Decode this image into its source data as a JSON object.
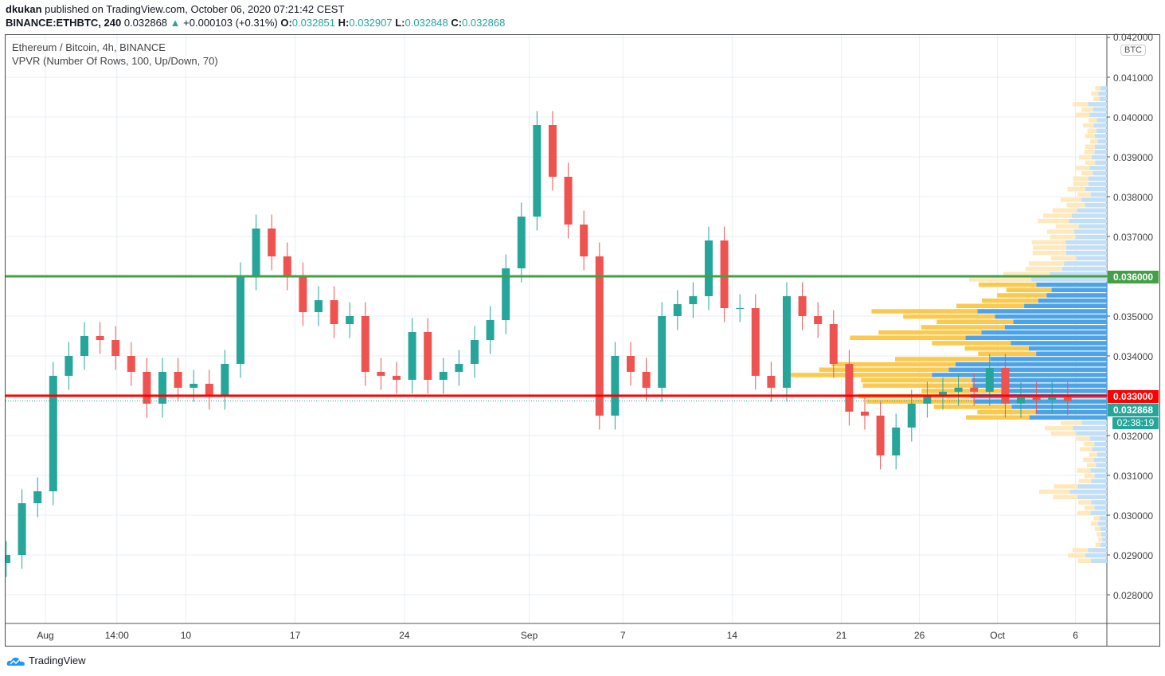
{
  "header": {
    "author": "dkukan",
    "published": "published on TradingView.com, October 06, 2020 07:21:42 CEST",
    "symbol": "BINANCE:ETHBTC, 240",
    "last": "0.032868",
    "change": "+0.000103 (+0.31%)",
    "o_label": "O:",
    "o": "0.032851",
    "h_label": "H:",
    "h": "0.032907",
    "l_label": "L:",
    "l": "0.032848",
    "c_label": "C:",
    "c": "0.032868"
  },
  "legend": {
    "title": "Ethereum / Bitcoin, 4h, BINANCE",
    "indicator": "VPVR (Number Of Rows, 100, Up/Down, 70)"
  },
  "currency": "BTC",
  "tags": {
    "green_line": "0.036000",
    "red_line": "0.033000",
    "last_price": "0.032868",
    "countdown": "02:38:19"
  },
  "colors": {
    "up": "#26a69a",
    "down": "#ef5350",
    "green_line": "#43a047",
    "red_line": "#ff0000",
    "vp_up": "#4da3e8",
    "vp_down": "#fbc94e",
    "vp_up_faded": "#c3dff5",
    "vp_down_faded": "#fde9bd"
  },
  "footer": {
    "brand": "TradingView"
  },
  "chart_data": {
    "type": "candlestick",
    "interval": "4h",
    "ylim": [
      0.0274,
      0.0421
    ],
    "y_ticks": [
      "0.028000",
      "0.029000",
      "0.030000",
      "0.031000",
      "0.032000",
      "0.033000",
      "0.034000",
      "0.035000",
      "0.036000",
      "0.037000",
      "0.038000",
      "0.039000",
      "0.040000",
      "0.041000",
      "0.042000"
    ],
    "x_ticks": [
      {
        "label": "Aug",
        "date": "2020-08-01"
      },
      {
        "label": "14:00",
        "date": "2020-08-05.58"
      },
      {
        "label": "10",
        "date": "2020-08-10"
      },
      {
        "label": "17",
        "date": "2020-08-17"
      },
      {
        "label": "24",
        "date": "2020-08-24"
      },
      {
        "label": "Sep",
        "date": "2020-09-01"
      },
      {
        "label": "7",
        "date": "2020-09-07"
      },
      {
        "label": "14",
        "date": "2020-09-14"
      },
      {
        "label": "21",
        "date": "2020-09-21"
      },
      {
        "label": "26",
        "date": "2020-09-26"
      },
      {
        "label": "Oct",
        "date": "2020-10-01"
      },
      {
        "label": "6",
        "date": "2020-10-06"
      }
    ],
    "horizontal_lines": [
      {
        "price": 0.036,
        "color": "green"
      },
      {
        "price": 0.033,
        "color": "red"
      }
    ],
    "daily_closes_approx": [
      [
        "2020-07-29",
        0.0288
      ],
      [
        "2020-07-30",
        0.029
      ],
      [
        "2020-07-31",
        0.0303
      ],
      [
        "2020-08-01",
        0.0306
      ],
      [
        "2020-08-02",
        0.0335
      ],
      [
        "2020-08-03",
        0.034
      ],
      [
        "2020-08-04",
        0.0345
      ],
      [
        "2020-08-05",
        0.0344
      ],
      [
        "2020-08-06",
        0.034
      ],
      [
        "2020-08-07",
        0.0336
      ],
      [
        "2020-08-08",
        0.0328
      ],
      [
        "2020-08-09",
        0.0336
      ],
      [
        "2020-08-10",
        0.0332
      ],
      [
        "2020-08-11",
        0.0333
      ],
      [
        "2020-08-12",
        0.033
      ],
      [
        "2020-08-13",
        0.0338
      ],
      [
        "2020-08-14",
        0.036
      ],
      [
        "2020-08-15",
        0.0372
      ],
      [
        "2020-08-16",
        0.0365
      ],
      [
        "2020-08-17",
        0.036
      ],
      [
        "2020-08-18",
        0.0351
      ],
      [
        "2020-08-19",
        0.0354
      ],
      [
        "2020-08-20",
        0.0348
      ],
      [
        "2020-08-21",
        0.035
      ],
      [
        "2020-08-22",
        0.0336
      ],
      [
        "2020-08-23",
        0.0335
      ],
      [
        "2020-08-24",
        0.0334
      ],
      [
        "2020-08-25",
        0.0346
      ],
      [
        "2020-08-26",
        0.0334
      ],
      [
        "2020-08-27",
        0.0336
      ],
      [
        "2020-08-28",
        0.0338
      ],
      [
        "2020-08-29",
        0.0344
      ],
      [
        "2020-08-30",
        0.0349
      ],
      [
        "2020-08-31",
        0.0362
      ],
      [
        "2020-09-01",
        0.0375
      ],
      [
        "2020-09-02",
        0.0398
      ],
      [
        "2020-09-03",
        0.0385
      ],
      [
        "2020-09-04",
        0.0373
      ],
      [
        "2020-09-05",
        0.0365
      ],
      [
        "2020-09-06",
        0.0325
      ],
      [
        "2020-09-07",
        0.034
      ],
      [
        "2020-09-08",
        0.0336
      ],
      [
        "2020-09-09",
        0.0332
      ],
      [
        "2020-09-10",
        0.035
      ],
      [
        "2020-09-11",
        0.0353
      ],
      [
        "2020-09-12",
        0.0355
      ],
      [
        "2020-09-13",
        0.0369
      ],
      [
        "2020-09-14",
        0.0352
      ],
      [
        "2020-09-15",
        0.0352
      ],
      [
        "2020-09-16",
        0.0335
      ],
      [
        "2020-09-17",
        0.0332
      ],
      [
        "2020-09-18",
        0.0355
      ],
      [
        "2020-09-19",
        0.035
      ],
      [
        "2020-09-20",
        0.0348
      ],
      [
        "2020-09-21",
        0.0338
      ],
      [
        "2020-09-22",
        0.0326
      ],
      [
        "2020-09-23",
        0.0325
      ],
      [
        "2020-09-24",
        0.0315
      ],
      [
        "2020-09-25",
        0.0322
      ],
      [
        "2020-09-26",
        0.0328
      ],
      [
        "2020-09-27",
        0.033
      ],
      [
        "2020-09-28",
        0.0331
      ],
      [
        "2020-09-29",
        0.0332
      ],
      [
        "2020-09-30",
        0.0331
      ],
      [
        "2020-10-01",
        0.0337
      ],
      [
        "2020-10-02",
        0.0328
      ],
      [
        "2020-10-03",
        0.033
      ],
      [
        "2020-10-04",
        0.0329
      ],
      [
        "2020-10-05",
        0.033
      ],
      [
        "2020-10-06",
        0.032868
      ]
    ],
    "volume_profile": {
      "value_area": [
        0.0324,
        0.0358
      ],
      "up_fraction": 0.55,
      "rows": [
        [
          0.0404,
          20
        ],
        [
          0.04,
          45
        ],
        [
          0.0396,
          30
        ],
        [
          0.0392,
          30
        ],
        [
          0.0388,
          35
        ],
        [
          0.0384,
          45
        ],
        [
          0.038,
          50
        ],
        [
          0.0376,
          70
        ],
        [
          0.0372,
          90
        ],
        [
          0.0368,
          95
        ],
        [
          0.0364,
          100
        ],
        [
          0.036,
          130
        ],
        [
          0.0356,
          180
        ],
        [
          0.0352,
          190
        ],
        [
          0.0348,
          300
        ],
        [
          0.0344,
          330
        ],
        [
          0.034,
          220
        ],
        [
          0.0336,
          380
        ],
        [
          0.0332,
          400
        ],
        [
          0.0328,
          330
        ],
        [
          0.0324,
          220
        ],
        [
          0.032,
          80
        ],
        [
          0.0316,
          40
        ],
        [
          0.0312,
          30
        ],
        [
          0.0308,
          40
        ],
        [
          0.0304,
          85
        ],
        [
          0.03,
          40
        ],
        [
          0.0296,
          20
        ],
        [
          0.0292,
          15
        ],
        [
          0.0288,
          50
        ]
      ]
    }
  }
}
